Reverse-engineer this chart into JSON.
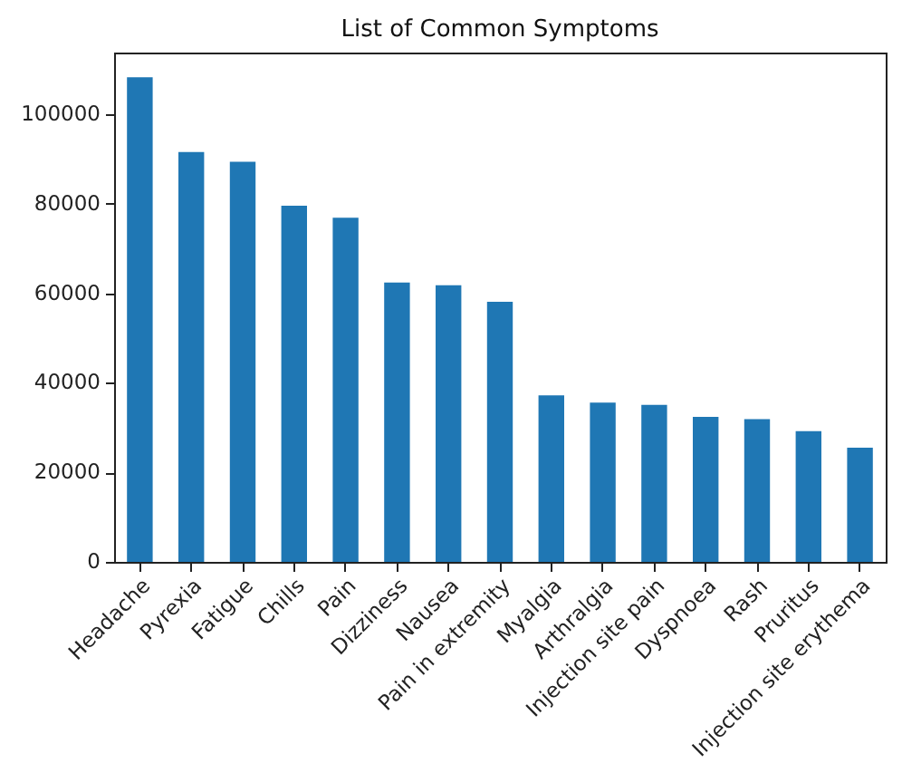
{
  "chart_data": {
    "type": "bar",
    "title": "List of Common Symptoms",
    "categories": [
      "Headache",
      "Pyrexia",
      "Fatigue",
      "Chills",
      "Pain",
      "Dizziness",
      "Nausea",
      "Pain in extremity",
      "Myalgia",
      "Arthralgia",
      "Injection site pain",
      "Dyspnoea",
      "Rash",
      "Pruritus",
      "Injection site erythema"
    ],
    "values": [
      108300,
      91600,
      89400,
      79600,
      76900,
      62400,
      61800,
      58100,
      37200,
      35600,
      35100,
      32400,
      31900,
      29200,
      25500
    ],
    "color": "#1f77b4",
    "ylim": [
      0,
      113800
    ],
    "yticks": [
      0,
      20000,
      40000,
      60000,
      80000,
      100000
    ],
    "grid": false
  }
}
